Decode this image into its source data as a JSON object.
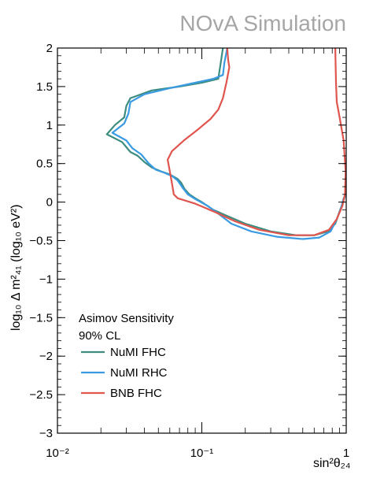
{
  "watermark": "NOvA Simulation",
  "chart_data": {
    "type": "line",
    "x_scale": "log",
    "xlim": [
      0.01,
      1
    ],
    "ylim": [
      -3,
      2
    ],
    "xlabel": "sin²θ₂₄",
    "ylabel": "log₁₀ Δ m²₄₁ (log₁₀ eV²)",
    "x_ticks": [
      {
        "value": 0.01,
        "label": "10⁻²"
      },
      {
        "value": 0.1,
        "label": "10⁻¹"
      },
      {
        "value": 1,
        "label": "1"
      }
    ],
    "y_ticks": [
      {
        "value": -3,
        "label": "−3"
      },
      {
        "value": -2.5,
        "label": "−2.5"
      },
      {
        "value": -2,
        "label": "−2"
      },
      {
        "value": -1.5,
        "label": "−1.5"
      },
      {
        "value": -1,
        "label": "−1"
      },
      {
        "value": -0.5,
        "label": "−0.5"
      },
      {
        "value": 0,
        "label": "0"
      },
      {
        "value": 0.5,
        "label": "0.5"
      },
      {
        "value": 1,
        "label": "1"
      },
      {
        "value": 1.5,
        "label": "1.5"
      },
      {
        "value": 2,
        "label": "2"
      }
    ],
    "legend_position": "bottom-left",
    "legend_header": [
      "Asimov Sensitivity",
      "90% CL"
    ],
    "series": [
      {
        "name": "NuMI FHC",
        "color": "#3d8c80",
        "points": [
          [
            0.14,
            2.0
          ],
          [
            0.135,
            1.8
          ],
          [
            0.13,
            1.6
          ],
          [
            0.1,
            1.55
          ],
          [
            0.07,
            1.5
          ],
          [
            0.045,
            1.45
          ],
          [
            0.032,
            1.35
          ],
          [
            0.03,
            1.25
          ],
          [
            0.029,
            1.1
          ],
          [
            0.025,
            1.0
          ],
          [
            0.022,
            0.88
          ],
          [
            0.028,
            0.78
          ],
          [
            0.032,
            0.65
          ],
          [
            0.036,
            0.6
          ],
          [
            0.04,
            0.52
          ],
          [
            0.045,
            0.45
          ],
          [
            0.052,
            0.4
          ],
          [
            0.06,
            0.36
          ],
          [
            0.068,
            0.3
          ],
          [
            0.072,
            0.25
          ],
          [
            0.076,
            0.17
          ],
          [
            0.082,
            0.1
          ],
          [
            0.09,
            0.05
          ],
          [
            0.1,
            0.0
          ],
          [
            0.12,
            -0.1
          ],
          [
            0.15,
            -0.18
          ],
          [
            0.2,
            -0.28
          ],
          [
            0.3,
            -0.38
          ],
          [
            0.45,
            -0.43
          ],
          [
            0.6,
            -0.43
          ],
          [
            0.75,
            -0.38
          ],
          [
            0.84,
            -0.28
          ],
          [
            0.9,
            -0.12
          ],
          [
            0.95,
            0.0
          ],
          [
            0.99,
            0.1
          ]
        ]
      },
      {
        "name": "NuMI RHC",
        "color": "#3a9be3",
        "points": [
          [
            0.15,
            2.0
          ],
          [
            0.143,
            1.8
          ],
          [
            0.14,
            1.65
          ],
          [
            0.12,
            1.6
          ],
          [
            0.09,
            1.55
          ],
          [
            0.06,
            1.48
          ],
          [
            0.04,
            1.4
          ],
          [
            0.032,
            1.3
          ],
          [
            0.031,
            1.15
          ],
          [
            0.029,
            1.02
          ],
          [
            0.024,
            0.9
          ],
          [
            0.03,
            0.8
          ],
          [
            0.033,
            0.7
          ],
          [
            0.038,
            0.62
          ],
          [
            0.043,
            0.5
          ],
          [
            0.048,
            0.42
          ],
          [
            0.055,
            0.38
          ],
          [
            0.062,
            0.34
          ],
          [
            0.068,
            0.28
          ],
          [
            0.074,
            0.18
          ],
          [
            0.08,
            0.1
          ],
          [
            0.09,
            0.04
          ],
          [
            0.11,
            -0.05
          ],
          [
            0.13,
            -0.15
          ],
          [
            0.16,
            -0.28
          ],
          [
            0.22,
            -0.38
          ],
          [
            0.33,
            -0.45
          ],
          [
            0.5,
            -0.48
          ],
          [
            0.65,
            -0.46
          ],
          [
            0.78,
            -0.38
          ],
          [
            0.86,
            -0.22
          ],
          [
            0.92,
            -0.08
          ],
          [
            0.96,
            0.05
          ],
          [
            1.0,
            0.1
          ]
        ]
      },
      {
        "name": "BNB FHC",
        "color": "#e0554e",
        "points": [
          [
            0.15,
            2.0
          ],
          [
            0.152,
            1.85
          ],
          [
            0.155,
            1.75
          ],
          [
            0.148,
            1.55
          ],
          [
            0.14,
            1.35
          ],
          [
            0.13,
            1.2
          ],
          [
            0.115,
            1.08
          ],
          [
            0.095,
            0.95
          ],
          [
            0.075,
            0.8
          ],
          [
            0.062,
            0.66
          ],
          [
            0.058,
            0.55
          ],
          [
            0.06,
            0.4
          ],
          [
            0.062,
            0.25
          ],
          [
            0.064,
            0.1
          ],
          [
            0.068,
            0.05
          ],
          [
            0.09,
            -0.02
          ],
          [
            0.12,
            -0.12
          ],
          [
            0.17,
            -0.25
          ],
          [
            0.25,
            -0.36
          ],
          [
            0.4,
            -0.43
          ],
          [
            0.6,
            -0.43
          ],
          [
            0.76,
            -0.36
          ],
          [
            0.86,
            -0.22
          ],
          [
            0.94,
            -0.05
          ],
          [
            0.98,
            0.1
          ],
          [
            0.99,
            0.4
          ],
          [
            0.96,
            0.8
          ],
          [
            0.9,
            1.1
          ],
          [
            0.86,
            1.3
          ],
          [
            0.85,
            1.55
          ],
          [
            0.84,
            2.0
          ]
        ]
      }
    ]
  }
}
